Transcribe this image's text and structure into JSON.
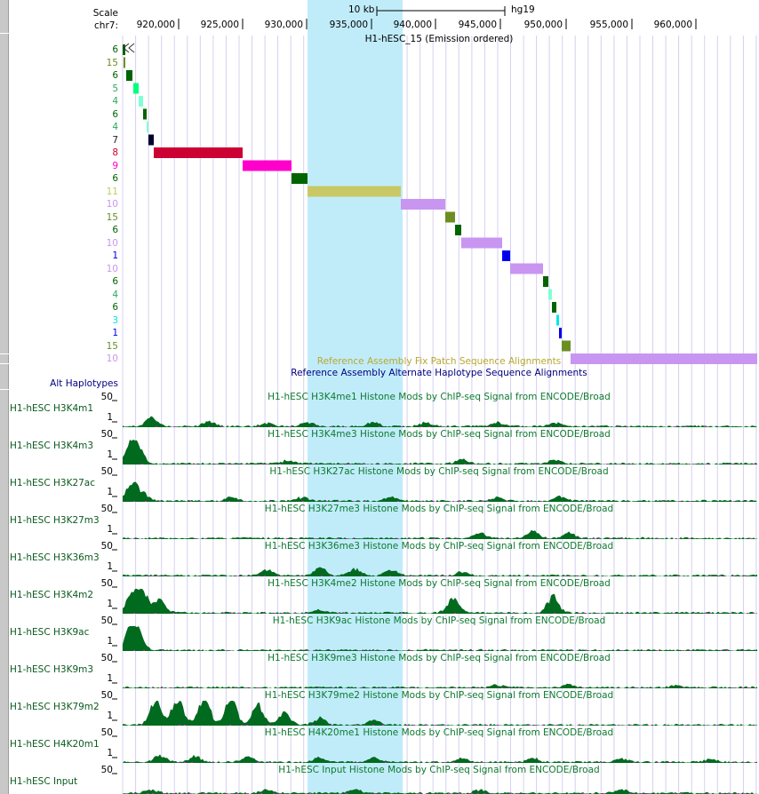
{
  "header": {
    "scale_label": "Scale",
    "chrom_label": "chr7:",
    "scale_bar_label": "10 kb",
    "assembly": "hg19",
    "ruler_ticks": [
      "920,000",
      "925,000",
      "930,000",
      "935,000",
      "940,000",
      "945,000",
      "950,000",
      "955,000",
      "960,000"
    ]
  },
  "chromhmm": {
    "title": "H1-hESC_15 (Emission ordered)",
    "segments": [
      {
        "state": "6",
        "color": "#006400"
      },
      {
        "state": "15",
        "color": "#6b8e23"
      },
      {
        "state": "6",
        "color": "#006400"
      },
      {
        "state": "5",
        "color": "#00ff7f"
      },
      {
        "state": "4",
        "color": "#7fffd4"
      },
      {
        "state": "6",
        "color": "#006400"
      },
      {
        "state": "4",
        "color": "#7fffd4"
      },
      {
        "state": "7",
        "color": "#000033"
      },
      {
        "state": "8",
        "color": "#cc0033"
      },
      {
        "state": "9",
        "color": "#ff00cc"
      },
      {
        "state": "6",
        "color": "#006400"
      },
      {
        "state": "11",
        "color": "#c8c864"
      },
      {
        "state": "10",
        "color": "#c896f0"
      },
      {
        "state": "15",
        "color": "#6b8e23"
      },
      {
        "state": "6",
        "color": "#006400"
      },
      {
        "state": "10",
        "color": "#c896f0"
      },
      {
        "state": "1",
        "color": "#0000ee"
      },
      {
        "state": "10",
        "color": "#c896f0"
      },
      {
        "state": "6",
        "color": "#006400"
      },
      {
        "state": "4",
        "color": "#7fffd4"
      },
      {
        "state": "6",
        "color": "#006400"
      },
      {
        "state": "3",
        "color": "#00e5ee"
      },
      {
        "state": "1",
        "color": "#0000ee"
      },
      {
        "state": "15",
        "color": "#6b8e23"
      },
      {
        "state": "10",
        "color": "#c896f0"
      }
    ]
  },
  "alignments": {
    "fix_patch": "Reference Assembly Fix Patch Sequence Alignments",
    "alt_haplotype": "Reference Assembly Alternate Haplotype Sequence Alignments",
    "alt_haplotypes_label": "Alt Haplotypes"
  },
  "signal_tracks": [
    {
      "short": "H1-hESC H3K4m1",
      "long": "H1-hESC H3K4me1 Histone Mods by ChIP-seq Signal from ENCODE/Broad",
      "max": "50",
      "min": "1"
    },
    {
      "short": "H1-hESC H3K4m3",
      "long": "H1-hESC H3K4me3 Histone Mods by ChIP-seq Signal from ENCODE/Broad",
      "max": "50",
      "min": "1"
    },
    {
      "short": "H1-hESC H3K27ac",
      "long": "H1-hESC H3K27ac Histone Mods by ChIP-seq Signal from ENCODE/Broad",
      "max": "50",
      "min": "1"
    },
    {
      "short": "H1-hESC H3K27m3",
      "long": "H1-hESC H3K27me3 Histone Mods by ChIP-seq Signal from ENCODE/Broad",
      "max": "50",
      "min": "1"
    },
    {
      "short": "H1-hESC H3K36m3",
      "long": "H1-hESC H3K36me3 Histone Mods by ChIP-seq Signal from ENCODE/Broad",
      "max": "50",
      "min": "1"
    },
    {
      "short": "H1-hESC H3K4m2",
      "long": "H1-hESC H3K4me2 Histone Mods by ChIP-seq Signal from ENCODE/Broad",
      "max": "50",
      "min": "1"
    },
    {
      "short": "H1-hESC H3K9ac",
      "long": "H1-hESC H3K9ac Histone Mods by ChIP-seq Signal from ENCODE/Broad",
      "max": "50",
      "min": "1"
    },
    {
      "short": "H1-hESC H3K9m3",
      "long": "H1-hESC H3K9me3 Histone Mods by ChIP-seq Signal from ENCODE/Broad",
      "max": "50",
      "min": "1"
    },
    {
      "short": "H1-hESC H3K79m2",
      "long": "H1-hESC H3K79me2 Histone Mods by ChIP-seq Signal from ENCODE/Broad",
      "max": "50",
      "min": "1"
    },
    {
      "short": "H1-hESC H4K20m1",
      "long": "H1-hESC H4K20me1 Histone Mods by ChIP-seq Signal from ENCODE/Broad",
      "max": "50",
      "min": "1"
    },
    {
      "short": "H1-hESC Input",
      "long": "H1-hESC Input Histone Mods by ChIP-seq Signal from ENCODE/Broad",
      "max": "50",
      "min": ""
    }
  ],
  "colors": {
    "highlight": "#c0ecfa",
    "signal": "#006a1e",
    "signal_label": "#0e7a2e",
    "grid": "#d6d0ef",
    "alt_label": "#000080",
    "fix_patch_label": "#b8a830"
  }
}
